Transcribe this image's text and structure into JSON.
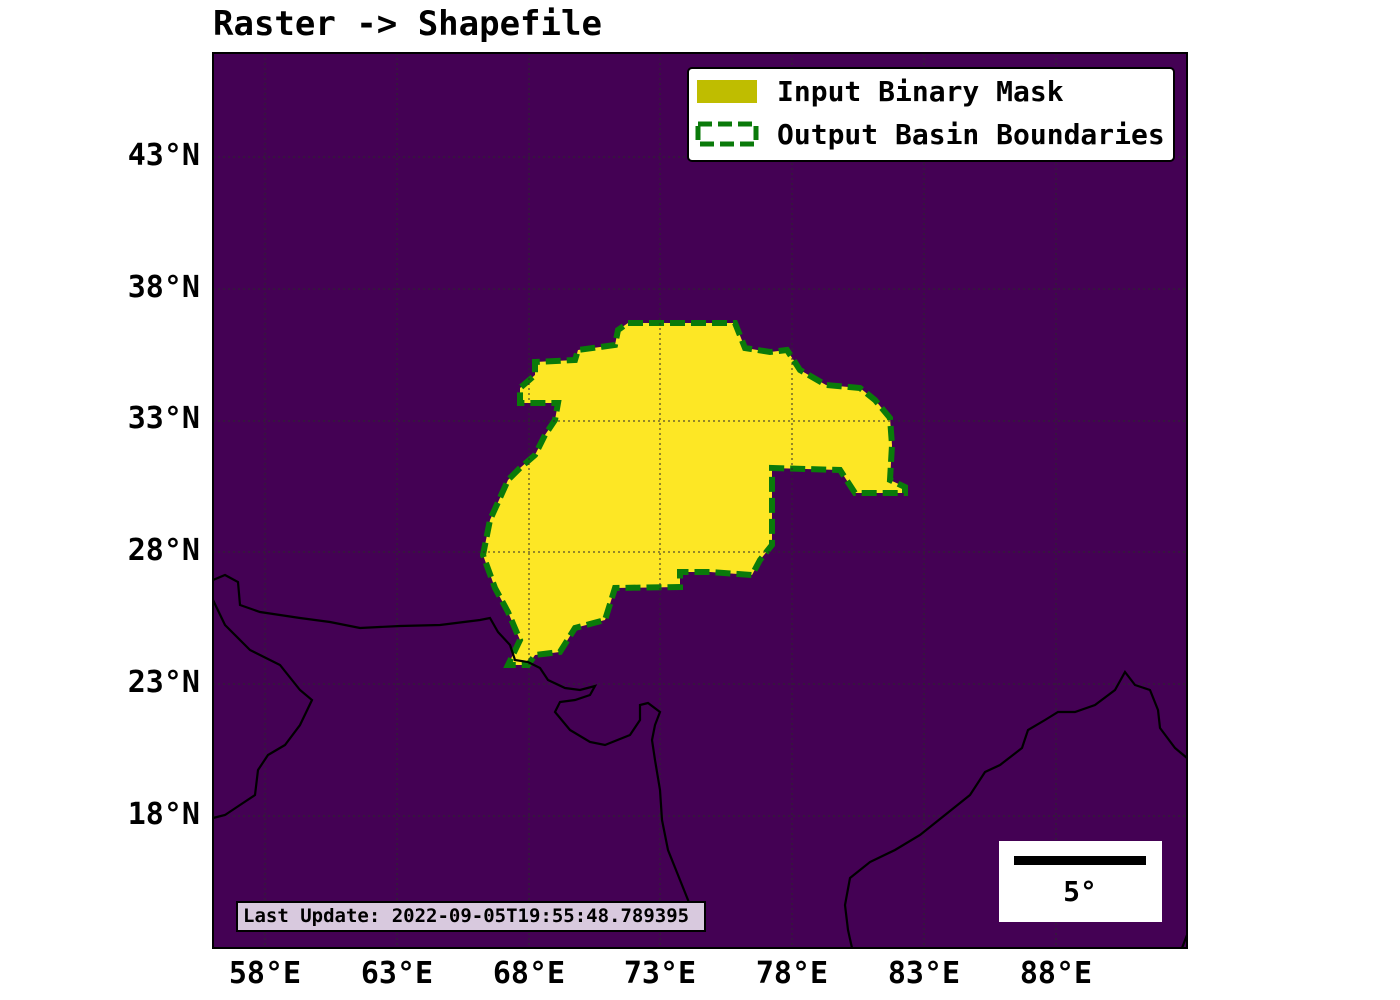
{
  "title": "Raster -> Shapefile",
  "legend": {
    "mask_label": "Input Binary Mask",
    "boundary_label": "Output Basin Boundaries"
  },
  "colors": {
    "background": "#440154",
    "mask": "#fde725",
    "legend_mask_patch": "#bfbd00",
    "boundary": "#0a7a0a",
    "coastline": "#000000",
    "grid": "#333333",
    "timestamp_box": "#d8c9de"
  },
  "axes": {
    "lat_ticks": [
      "43°N",
      "38°N",
      "33°N",
      "28°N",
      "23°N",
      "18°N"
    ],
    "lon_ticks": [
      "58°E",
      "63°E",
      "68°E",
      "73°E",
      "78°E",
      "83°E",
      "88°E"
    ]
  },
  "scale_bar": {
    "label": "5°"
  },
  "timestamp": "Last Update: 2022-09-05T19:55:48.789395"
}
